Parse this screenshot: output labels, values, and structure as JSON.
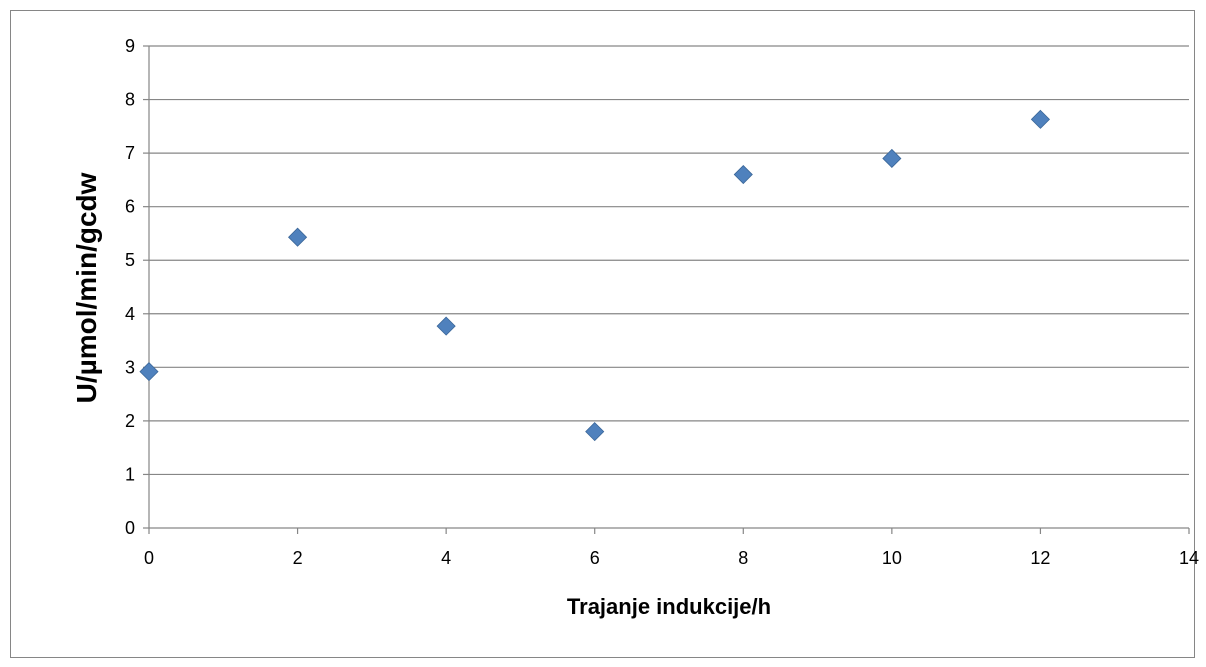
{
  "chart_data": {
    "type": "scatter",
    "title": "",
    "xlabel": "Trajanje indukcije/h",
    "ylabel": "U/µmol/min/gcdw",
    "xlim": [
      0,
      14
    ],
    "ylim": [
      0,
      9
    ],
    "x_ticks": [
      "0",
      "2",
      "4",
      "6",
      "8",
      "10",
      "12",
      "14"
    ],
    "y_ticks": [
      "0",
      "1",
      "2",
      "3",
      "4",
      "5",
      "6",
      "7",
      "8",
      "9"
    ],
    "grid": "horizontal",
    "legend": "none",
    "marker": "diamond",
    "marker_color": "#4f81bd",
    "series": [
      {
        "x": [
          0,
          2,
          4,
          6,
          8,
          10,
          12
        ],
        "y": [
          2.92,
          5.43,
          3.77,
          1.8,
          6.6,
          6.9,
          7.63
        ]
      }
    ]
  }
}
